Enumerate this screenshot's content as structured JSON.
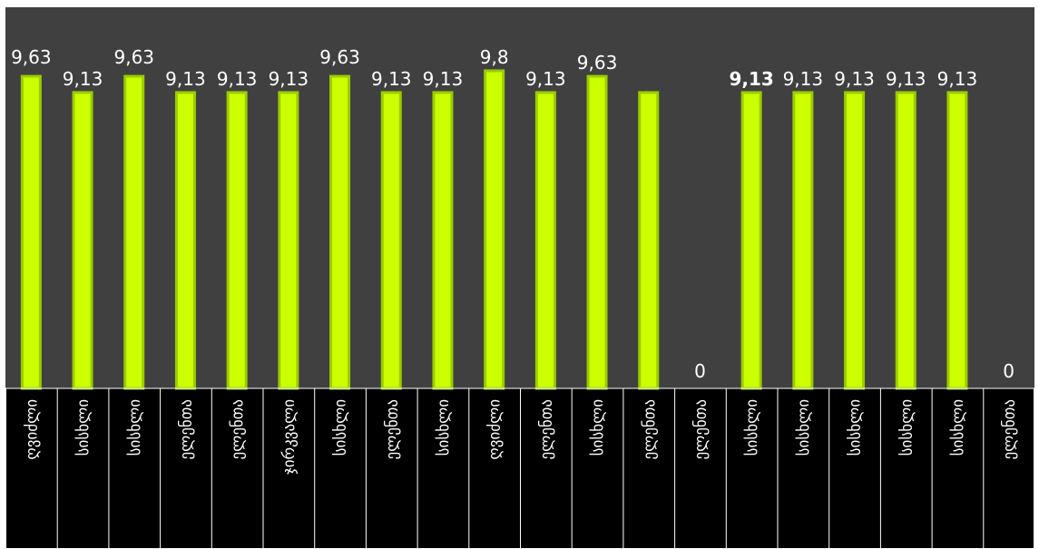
{
  "colors": {
    "plot_background": "#404040",
    "bar_fill": "#ccff00",
    "bar_edge": "#9acc00",
    "label_text": "#ffffff",
    "category_background": "#000000",
    "category_border": "#ffffff"
  },
  "chart_data": {
    "type": "bar",
    "title": "",
    "xlabel": "",
    "ylabel": "",
    "ylim": [
      0,
      10.5
    ],
    "grid": false,
    "legend": "none",
    "categories": [
      "ღვიძლი",
      "სისხლი",
      "სისხლი",
      "ელენთა",
      "ელენთა",
      "ჯირკვალი",
      "სისხლი",
      "ელენთა",
      "სისხლი",
      "ღვიძლი",
      "ელენთა",
      "სისხლი",
      "ელენთა",
      "ელენთა",
      "სისხლი",
      "სისხლი",
      "სისხლი",
      "სისხლი",
      "სისხლი",
      "ელენთა"
    ],
    "values": [
      9.63,
      9.13,
      9.63,
      9.13,
      9.13,
      9.13,
      9.63,
      9.13,
      9.13,
      9.8,
      9.13,
      9.63,
      9.13,
      0,
      9.13,
      9.13,
      9.13,
      9.13,
      9.13,
      0
    ],
    "data_labels": [
      "9,63",
      "9,13",
      "9,63",
      "9,13",
      "9,13",
      "9,13",
      "9,63",
      "9,13",
      "9,13",
      "9,8",
      "9,13",
      "9,63",
      "",
      "0",
      "9,13",
      "9,13",
      "9,13",
      "9,13",
      "9,13",
      "0"
    ],
    "bold_label_indices": [
      14
    ]
  }
}
